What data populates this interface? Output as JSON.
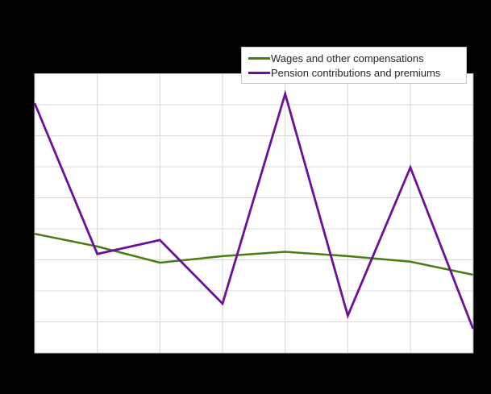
{
  "chart_data": {
    "type": "line",
    "title": "",
    "xlabel": "",
    "ylabel": "",
    "x": [
      1,
      2,
      3,
      4,
      5,
      6,
      7,
      8
    ],
    "x_tick_labels_visible": false,
    "y_tick_labels_visible": false,
    "value_units": "gridline intervals measured from plot bottom (axis tick labels are not visible in the image)",
    "ylim": [
      0,
      9
    ],
    "series": [
      {
        "name": "Wages and other compensations",
        "color": "#4a7d0f",
        "values": [
          3.84,
          3.43,
          2.91,
          3.12,
          3.26,
          3.12,
          2.94,
          2.52
        ]
      },
      {
        "name": "Pension contributions and premiums",
        "color": "#6e0f99",
        "values": [
          8.05,
          3.19,
          3.64,
          1.59,
          8.35,
          1.2,
          5.98,
          0.78
        ]
      }
    ],
    "grid": {
      "visible": true,
      "h_lines": 10,
      "v_lines": 8,
      "color": "#d8d8d8",
      "border_color": "#c9c9c9"
    },
    "legend": {
      "position": "top-right",
      "background": "#ffffff",
      "border_color": "#c6c6c6"
    },
    "plot_background": "#ffffff",
    "outer_background": "#000000"
  }
}
